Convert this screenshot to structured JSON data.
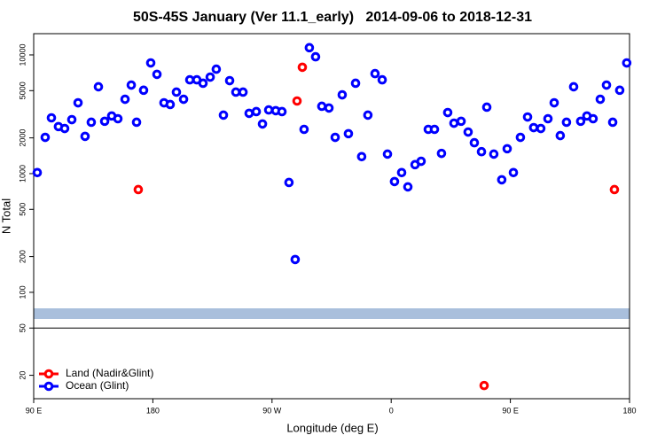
{
  "chart_data": {
    "type": "scatter",
    "title": "50S-45S January (Ver 11.1_early)   2014-09-06 to 2018-12-31",
    "x_label": "Longitude (deg E)",
    "y_label": "N Total",
    "xlim": [
      90,
      540
    ],
    "xticks": [
      {
        "value": 90,
        "label": "90 E"
      },
      180,
      {
        "value": 270,
        "label": "90 W"
      },
      {
        "value": 360,
        "label": "0"
      },
      {
        "value": 450,
        "label": "90 E"
      },
      {
        "value": 540,
        "label": "180"
      }
    ],
    "ylim": [
      12.7,
      15100
    ],
    "yscale": "log",
    "yticks": [
      20,
      50,
      100,
      200,
      500,
      1000,
      2000,
      5000,
      10000
    ],
    "legend": "lower left",
    "series": [
      {
        "name": "Land (Nadir&Glint)",
        "color": "#ff0000",
        "x": [
          169.0,
          288.9,
          292.9,
          430.2,
          528.6
        ],
        "values": [
          734,
          4090,
          7870,
          16.4,
          734
        ]
      },
      {
        "name": "Ocean (Glint)",
        "color": "#0000ff",
        "x": [
          92.7,
          98.7,
          103.4,
          108.7,
          113.4,
          118.8,
          123.5,
          128.8,
          133.5,
          138.9,
          143.6,
          148.9,
          153.6,
          159.0,
          163.7,
          167.7,
          173.0,
          178.4,
          183.1,
          188.4,
          193.1,
          197.8,
          203.2,
          207.9,
          213.2,
          217.9,
          223.3,
          227.9,
          233.3,
          238.0,
          242.7,
          248.1,
          252.7,
          258.1,
          262.8,
          267.5,
          272.8,
          277.5,
          282.8,
          287.5,
          294.2,
          298.2,
          302.9,
          307.6,
          313.0,
          317.7,
          323.0,
          327.7,
          333.1,
          337.7,
          342.4,
          347.8,
          353.2,
          357.2,
          362.5,
          367.9,
          372.6,
          378.0,
          382.6,
          388.0,
          392.7,
          398.0,
          402.7,
          407.4,
          412.8,
          418.1,
          422.8,
          428.2,
          432.2,
          437.5,
          443.5,
          447.6,
          452.3,
          457.6,
          463.0,
          467.6,
          473.0,
          478.4,
          483.1,
          487.7,
          492.4,
          497.8,
          503.1,
          507.8,
          512.5,
          517.9,
          522.6,
          527.3,
          532.6,
          537.9
        ],
        "values": [
          1020,
          2020,
          2950,
          2490,
          2400,
          2850,
          3950,
          2060,
          2710,
          5390,
          2760,
          3060,
          2900,
          4230,
          5570,
          2710,
          5040,
          8560,
          6860,
          3950,
          3820,
          4860,
          4230,
          6170,
          6170,
          5770,
          6500,
          7580,
          3110,
          6070,
          4860,
          4860,
          3220,
          3330,
          2620,
          3440,
          3390,
          3330,
          842,
          189,
          2360,
          11500,
          9640,
          3690,
          3570,
          2020,
          4610,
          2170,
          5770,
          1390,
          3110,
          6960,
          6170,
          1460,
          857,
          1020,
          773,
          1190,
          1270,
          2360,
          2360,
          1480,
          3270,
          2660,
          2760,
          2240,
          1820,
          1530,
          3630,
          1460,
          887,
          1620,
          1020,
          2020,
          3000,
          2440,
          2400,
          2900,
          3950,
          2090,
          2710,
          5390,
          2760,
          3060,
          2900,
          4230,
          5570,
          2710,
          5040,
          8560
        ]
      }
    ]
  }
}
